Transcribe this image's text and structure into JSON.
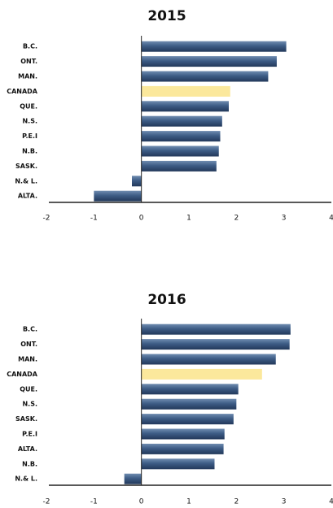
{
  "chart_data": [
    {
      "type": "bar",
      "title": "2015",
      "categories": [
        "B.C.",
        "ONT.",
        "MAN.",
        "CANADA",
        "QUE.",
        "N.S.",
        "P.E.I",
        "N.B.",
        "SASK.",
        "N.& L.",
        "ALTA."
      ],
      "values": [
        3.05,
        2.85,
        2.67,
        1.87,
        1.84,
        1.7,
        1.66,
        1.63,
        1.58,
        -0.2,
        -1.0
      ],
      "colors": [
        "#3d5c85",
        "#3d5c85",
        "#3d5c85",
        "#fbe89c",
        "#3d5c85",
        "#3d5c85",
        "#3d5c85",
        "#3d5c85",
        "#3d5c85",
        "#3d5c85",
        "#3d5c85"
      ],
      "xlim": [
        -2,
        4
      ],
      "xticks": [
        -2,
        -1,
        0,
        1,
        2,
        3,
        4
      ]
    },
    {
      "type": "bar",
      "title": "2016",
      "categories": [
        "B.C.",
        "ONT.",
        "MAN.",
        "CANADA",
        "QUE.",
        "N.S.",
        "SASK.",
        "P.E.I",
        "ALTA.",
        "N.B.",
        "N.& L."
      ],
      "values": [
        3.14,
        3.12,
        2.83,
        2.54,
        2.04,
        2.0,
        1.94,
        1.75,
        1.73,
        1.54,
        -0.36
      ],
      "colors": [
        "#3d5c85",
        "#3d5c85",
        "#3d5c85",
        "#fbe89c",
        "#3d5c85",
        "#3d5c85",
        "#3d5c85",
        "#3d5c85",
        "#3d5c85",
        "#3d5c85",
        "#3d5c85"
      ],
      "xlim": [
        -2,
        4
      ],
      "xticks": [
        -2,
        -1,
        0,
        1,
        2,
        3,
        4
      ]
    }
  ]
}
